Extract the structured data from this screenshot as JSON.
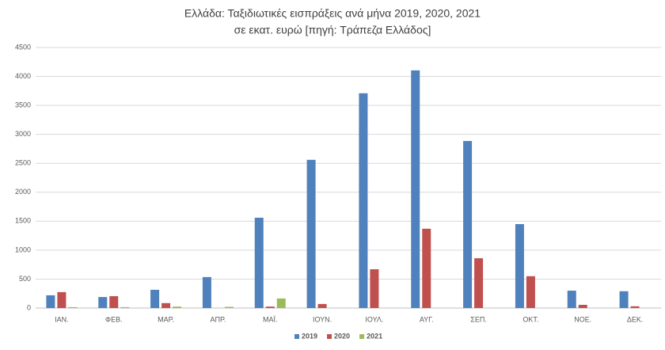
{
  "chart_data": {
    "type": "bar",
    "title": "Ελλάδα: Ταξιδιωτικές εισπράξεις ανά μήνα 2019, 2020, 2021",
    "subtitle": "σε εκατ. ευρώ [πηγή: Τράπεζα Ελλάδος]",
    "categories": [
      "ΙΑΝ.",
      "ΦΕΒ.",
      "ΜΑΡ.",
      "ΑΠΡ.",
      "ΜΑΪ.",
      "ΙΟΥΝ.",
      "ΙΟΥΛ.",
      "ΑΥΓ.",
      "ΣΕΠ.",
      "ΟΚΤ.",
      "ΝΟΕ.",
      "ΔΕΚ."
    ],
    "series": [
      {
        "name": "2019",
        "color": "#4f81bd",
        "values": [
          220,
          190,
          315,
          535,
          1560,
          2560,
          3710,
          4105,
          2885,
          1450,
          300,
          290
        ]
      },
      {
        "name": "2020",
        "color": "#c0504d",
        "values": [
          275,
          205,
          85,
          0,
          25,
          70,
          670,
          1370,
          860,
          550,
          55,
          30
        ]
      },
      {
        "name": "2021",
        "color": "#9bbb59",
        "values": [
          15,
          15,
          25,
          20,
          165,
          null,
          null,
          null,
          null,
          null,
          null,
          null
        ]
      }
    ],
    "ylim": [
      0,
      4500
    ],
    "yticks": [
      0,
      500,
      1000,
      1500,
      2000,
      2500,
      3000,
      3500,
      4000,
      4500
    ],
    "grid": true,
    "legend": "bottom"
  }
}
